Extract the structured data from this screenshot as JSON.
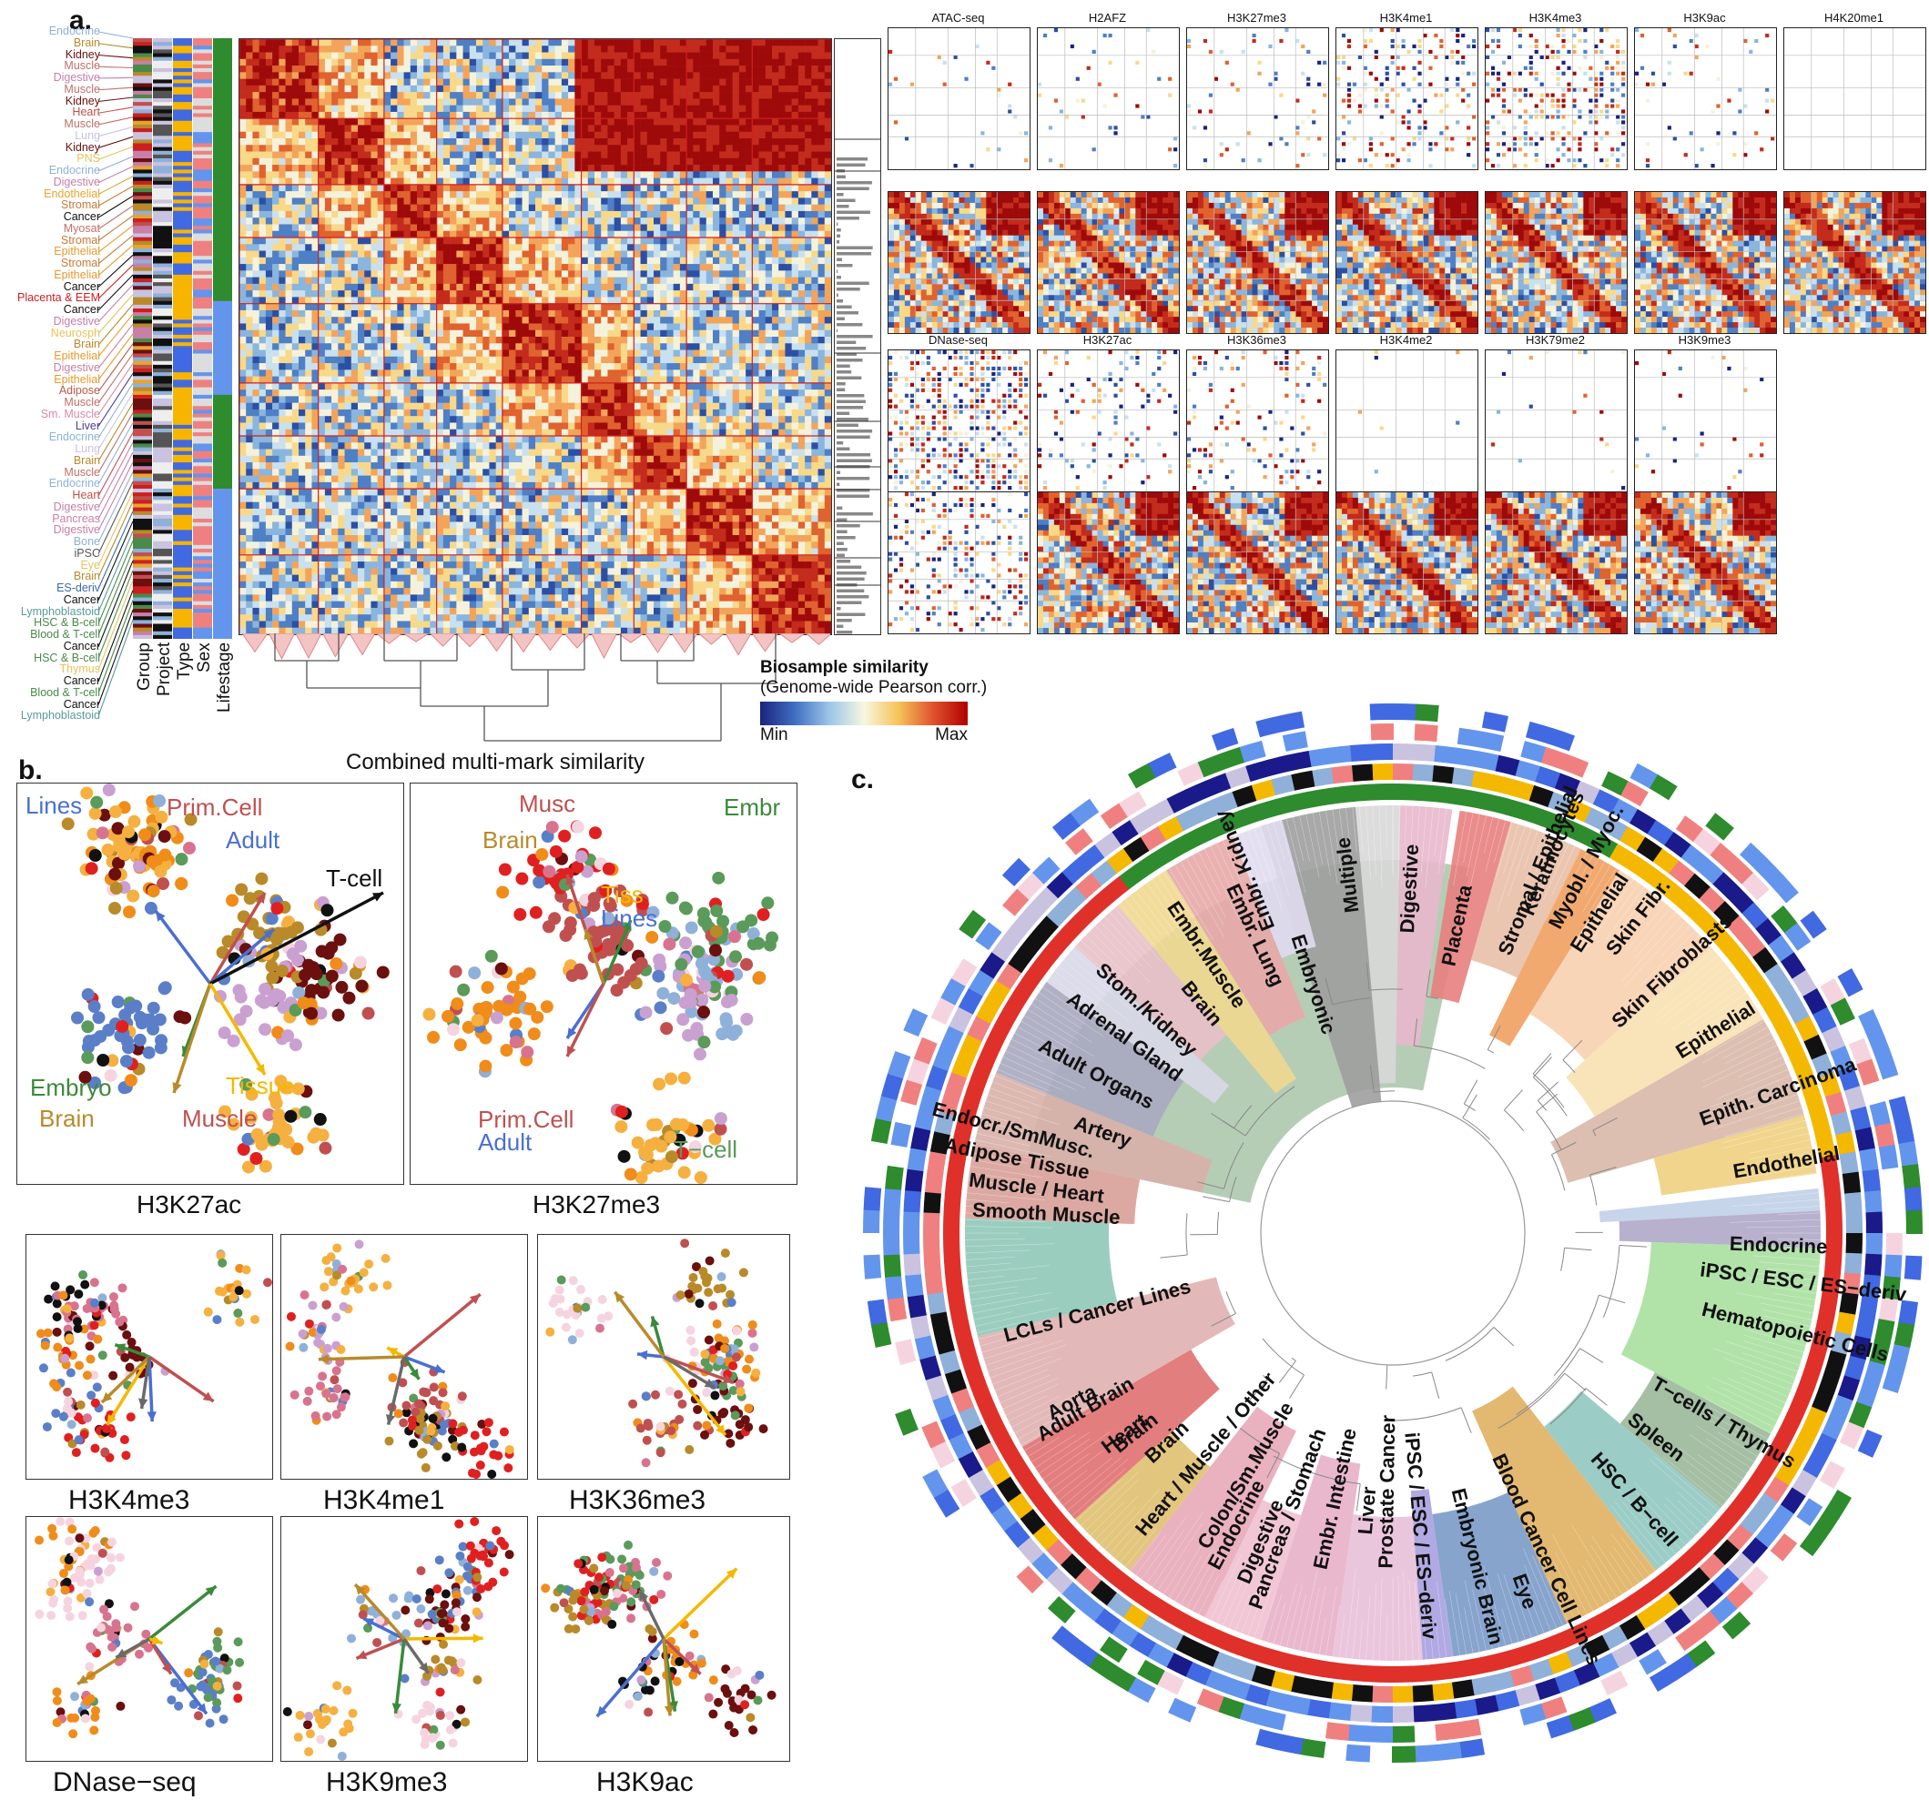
{
  "panel_a": {
    "letter": "a.",
    "group_labels": [
      {
        "text": "Endocrine",
        "color": "#8fb0d9"
      },
      {
        "text": "Brain",
        "color": "#b88a2a"
      },
      {
        "text": "Kidney",
        "color": "#6b0f0f"
      },
      {
        "text": "Muscle",
        "color": "#c0706a"
      },
      {
        "text": "Digestive",
        "color": "#c87fa8"
      },
      {
        "text": "Muscle",
        "color": "#c0706a"
      },
      {
        "text": "Kidney",
        "color": "#6b0f0f"
      },
      {
        "text": "Heart",
        "color": "#c0504d"
      },
      {
        "text": "Muscle",
        "color": "#c0706a"
      },
      {
        "text": "Lung",
        "color": "#c9c3e0"
      },
      {
        "text": "Kidney",
        "color": "#6b0f0f"
      },
      {
        "text": "PNS",
        "color": "#e6c35a"
      },
      {
        "text": "Endocrine",
        "color": "#8fb0d9"
      },
      {
        "text": "Digestive",
        "color": "#c87fa8"
      },
      {
        "text": "Endothelial",
        "color": "#e6a52e"
      },
      {
        "text": "Stromal",
        "color": "#c87a3a"
      },
      {
        "text": "Cancer",
        "color": "#111111"
      },
      {
        "text": "Myosat",
        "color": "#c0706a"
      },
      {
        "text": "Stromal",
        "color": "#c87a3a"
      },
      {
        "text": "Epithelial",
        "color": "#e69a2e"
      },
      {
        "text": "Stromal",
        "color": "#c87a3a"
      },
      {
        "text": "Epithelial",
        "color": "#e69a2e"
      },
      {
        "text": "Cancer",
        "color": "#111111"
      },
      {
        "text": "Placenta & EEM",
        "color": "#cc1f1f"
      },
      {
        "text": "Cancer",
        "color": "#111111"
      },
      {
        "text": "Digestive",
        "color": "#c87fa8"
      },
      {
        "text": "Neurosph",
        "color": "#e6c35a"
      },
      {
        "text": "Brain",
        "color": "#b88a2a"
      },
      {
        "text": "Epithelial",
        "color": "#e69a2e"
      },
      {
        "text": "Digestive",
        "color": "#c87fa8"
      },
      {
        "text": "Epithelial",
        "color": "#e69a2e"
      },
      {
        "text": "Adipose",
        "color": "#b85a4a"
      },
      {
        "text": "Muscle",
        "color": "#c0706a"
      },
      {
        "text": "Sm. Muscle",
        "color": "#d88aa0"
      },
      {
        "text": "Liver",
        "color": "#4a3c9a"
      },
      {
        "text": "Endocrine",
        "color": "#8fb0d9"
      },
      {
        "text": "Lung",
        "color": "#c9c3e0"
      },
      {
        "text": "Brain",
        "color": "#b88a2a"
      },
      {
        "text": "Muscle",
        "color": "#c0706a"
      },
      {
        "text": "Endocrine",
        "color": "#8fb0d9"
      },
      {
        "text": "Heart",
        "color": "#c0504d"
      },
      {
        "text": "Digestive",
        "color": "#c87fa8"
      },
      {
        "text": "Pancreas",
        "color": "#c87fa8"
      },
      {
        "text": "Digestive",
        "color": "#c87fa8"
      },
      {
        "text": "Bone",
        "color": "#8fb0d9"
      },
      {
        "text": "iPSC",
        "color": "#555555"
      },
      {
        "text": "Eye",
        "color": "#e6c35a"
      },
      {
        "text": "Brain",
        "color": "#b88a2a"
      },
      {
        "text": "ES-deriv",
        "color": "#3a6ab0"
      },
      {
        "text": "Cancer",
        "color": "#111111"
      },
      {
        "text": "Lymphoblastoid",
        "color": "#5a9a9a"
      },
      {
        "text": "HSC & B-cell",
        "color": "#4a8a4a"
      },
      {
        "text": "Blood & T-cell",
        "color": "#4a8a4a"
      },
      {
        "text": "Cancer",
        "color": "#111111"
      },
      {
        "text": "HSC & B-cell",
        "color": "#4a8a4a"
      },
      {
        "text": "Thymus",
        "color": "#e6c35a"
      },
      {
        "text": "Cancer",
        "color": "#111111"
      },
      {
        "text": "Blood & T-cell",
        "color": "#4a8a4a"
      },
      {
        "text": "Cancer",
        "color": "#111111"
      },
      {
        "text": "Lymphoblastoid",
        "color": "#5a9a9a"
      }
    ],
    "annotation_tracks": [
      "Group",
      "Project",
      "Type",
      "Sex",
      "Lifestage"
    ],
    "heatmap_caption": "Combined multi-mark similarity",
    "legend_title": "Biosample similarity",
    "legend_subtitle": "(Genome-wide Pearson corr.)",
    "legend_min": "Min",
    "legend_max": "Max",
    "mini_row1": [
      "ATAC-seq",
      "H2AFZ",
      "H3K27me3",
      "H3K4me1",
      "H3K4me3",
      "H3K9ac",
      "H4K20me1"
    ],
    "mini_row2": [
      "DNase-seq",
      "H3K27ac",
      "H3K36me3",
      "H3K4me2",
      "H3K79me2",
      "H3K9me3"
    ]
  },
  "panel_b": {
    "letter": "b.",
    "plots": [
      {
        "title": "H3K27ac",
        "arrows": [
          "Lines",
          "Prim.Cell",
          "Adult",
          "T-cell",
          "Embryo",
          "Brain",
          "Tissue",
          "Muscle"
        ]
      },
      {
        "title": "H3K27me3",
        "arrows": [
          "Musc",
          "Embr",
          "Brain",
          "Tiss",
          "Lines",
          "Prim.Cell",
          "Adult",
          "T−cell"
        ]
      },
      {
        "title": "H3K4me3",
        "arrows": []
      },
      {
        "title": "H3K4me1",
        "arrows": []
      },
      {
        "title": "H3K36me3",
        "arrows": []
      },
      {
        "title": "DNase−seq",
        "arrows": []
      },
      {
        "title": "H3K9me3",
        "arrows": []
      },
      {
        "title": "H3K9ac",
        "arrows": []
      }
    ]
  },
  "panel_c": {
    "letter": "c.",
    "labels": [
      "Embr. Kidney",
      "Multiple",
      "Digestive",
      "Placenta",
      "Keratinocytes",
      "Myobl. / Myoc.",
      "Stromal / Epithelial",
      "Epithelial",
      "Skin Fibr.",
      "Skin Fibroblasts",
      "Epithelial",
      "Epith. Carcinoma",
      "Endothelial",
      "Endocrine",
      "iPSC / ESC / ES−deriv",
      "Hematopoietic Cells",
      "T−cells / Thymus",
      "Spleen",
      "HSC / B−cell",
      "Blood Cancer Cell Lines",
      "Eye",
      "Embryonic Brain",
      "iPSC / ESC / ES−deriv",
      "Prostate Cancer",
      "Liver",
      "Embr. Intestine",
      "Pancreas / Stomach",
      "Digestive",
      "Colon/Sm.Muscle",
      "Endocrine",
      "Heart / Muscle / Other",
      "Brain",
      "Heart",
      "Aorta",
      "Adult Brain",
      "Brain",
      "LCLs / Cancer Lines",
      "Smooth Muscle",
      "Muscle / Heart",
      "Adipose Tissue",
      "Endocr./SmMusc.",
      "Artery",
      "Adult Organs",
      "Adrenal Gland",
      "Stom./Kidney",
      "Brain",
      "Embr.Muscle",
      "Embr. Lung",
      "Embryonic"
    ]
  }
}
